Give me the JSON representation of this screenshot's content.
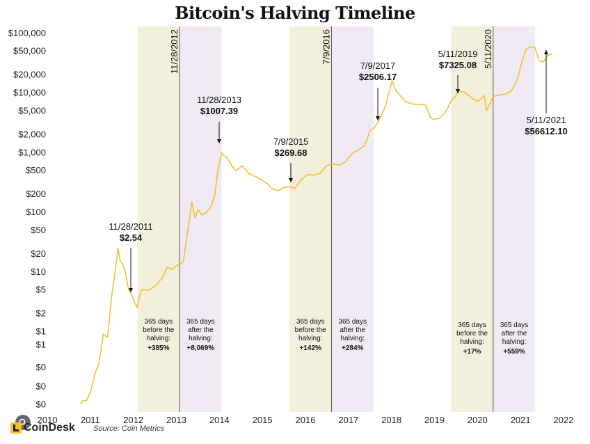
{
  "header": {
    "title": "Bitcoin's Halving Timeline"
  },
  "footer": {
    "brand": "CoinDesk",
    "source": "Source: Coin Metrics"
  },
  "colors": {
    "price_line": "#f2c12e",
    "before_band": "#f2efdc",
    "after_band": "#efeaf3",
    "vline": "#555555"
  },
  "icons": {
    "brand_logo": "coindesk-logo-icon",
    "overlay": "search-icon"
  },
  "chart_data": {
    "type": "line",
    "title": "Bitcoin's Halving Timeline",
    "xlabel": "",
    "ylabel": "",
    "scale": "log",
    "grid": false,
    "x_ticks": [
      "2010",
      "2011",
      "2012",
      "2013",
      "2014",
      "2015",
      "2016",
      "2017",
      "2018",
      "2019",
      "2020",
      "2021",
      "2022"
    ],
    "y_ticks": [
      {
        "value": 0.06,
        "label": "$0"
      },
      {
        "value": 0.12,
        "label": "$0"
      },
      {
        "value": 0.25,
        "label": "$0"
      },
      {
        "value": 0.6,
        "label": "$1"
      },
      {
        "value": 1,
        "label": "$1"
      },
      {
        "value": 2,
        "label": "$2"
      },
      {
        "value": 5,
        "label": "$5"
      },
      {
        "value": 10,
        "label": "$10"
      },
      {
        "value": 20,
        "label": "$20"
      },
      {
        "value": 50,
        "label": "$50"
      },
      {
        "value": 100,
        "label": "$100"
      },
      {
        "value": 200,
        "label": "$200"
      },
      {
        "value": 500,
        "label": "$500"
      },
      {
        "value": 1000,
        "label": "$1,000"
      },
      {
        "value": 2000,
        "label": "$2,000"
      },
      {
        "value": 5000,
        "label": "$5,000"
      },
      {
        "value": 10000,
        "label": "$10,000"
      },
      {
        "value": 20000,
        "label": "$20,000"
      },
      {
        "value": 50000,
        "label": "$50,000"
      },
      {
        "value": 100000,
        "label": "$100,000"
      }
    ],
    "series": [
      {
        "x": [
          2010.55,
          2010.62,
          2010.7,
          2010.8,
          2010.9,
          2011.0,
          2011.1,
          2011.2,
          2011.3,
          2011.38,
          2011.45,
          2011.5,
          2011.55,
          2011.62,
          2011.7,
          2011.78,
          2011.85,
          2011.9,
          2012.0,
          2012.1,
          2012.2,
          2012.35,
          2012.5,
          2012.62,
          2012.75,
          2012.85,
          2012.91,
          2013.0,
          2013.1,
          2013.2,
          2013.28,
          2013.35,
          2013.45,
          2013.55,
          2013.65,
          2013.75,
          2013.82,
          2013.91,
          2013.96,
          2014.05,
          2014.15,
          2014.25,
          2014.4,
          2014.55,
          2014.7,
          2014.85,
          2015.0,
          2015.1,
          2015.25,
          2015.4,
          2015.52,
          2015.65,
          2015.8,
          2015.95,
          2016.1,
          2016.25,
          2016.4,
          2016.52,
          2016.7,
          2016.85,
          2017.0,
          2017.15,
          2017.3,
          2017.45,
          2017.52,
          2017.65,
          2017.8,
          2017.96,
          2018.05,
          2018.15,
          2018.3,
          2018.45,
          2018.6,
          2018.75,
          2018.88,
          2018.95,
          2019.1,
          2019.25,
          2019.36,
          2019.45,
          2019.55,
          2019.7,
          2019.85,
          2020.0,
          2020.15,
          2020.2,
          2020.3,
          2020.36,
          2020.5,
          2020.65,
          2020.8,
          2020.95,
          2021.05,
          2021.15,
          2021.28,
          2021.36,
          2021.45,
          2021.55,
          2021.65,
          2021.75
        ],
        "y": [
          0.06,
          0.07,
          0.07,
          0.1,
          0.2,
          0.3,
          0.9,
          0.8,
          4,
          10,
          25,
          15,
          14,
          10,
          5,
          4,
          3,
          2.54,
          5,
          5,
          5,
          6,
          8,
          12,
          11,
          13,
          13,
          15,
          45,
          150,
          80,
          110,
          90,
          100,
          120,
          200,
          500,
          1007.39,
          900,
          800,
          600,
          500,
          600,
          450,
          400,
          350,
          300,
          250,
          230,
          260,
          269.68,
          250,
          350,
          430,
          420,
          450,
          600,
          650,
          620,
          700,
          950,
          1100,
          1300,
          2400,
          2506.17,
          3500,
          6000,
          16000,
          11000,
          9000,
          7000,
          6500,
          6400,
          6300,
          3800,
          3600,
          3800,
          5000,
          7325.08,
          8500,
          11000,
          10000,
          8200,
          7200,
          9000,
          5000,
          7000,
          8700,
          9200,
          9500,
          11000,
          18000,
          35000,
          55000,
          60000,
          56612.1,
          35000,
          33000,
          42000,
          46000
        ]
      }
    ],
    "halvings": [
      {
        "x": 2012.91,
        "label": "11/28/2012"
      },
      {
        "x": 2016.52,
        "label": "7/9/2016"
      },
      {
        "x": 2020.36,
        "label": "5/11/2020"
      }
    ],
    "bands": [
      {
        "x0": 2011.91,
        "x1": 2012.91,
        "kind": "before",
        "lines": [
          "365 days",
          "before the",
          "halving:"
        ],
        "value": "+385%"
      },
      {
        "x0": 2012.91,
        "x1": 2013.91,
        "kind": "after",
        "lines": [
          "365 days",
          "after the",
          "halving:"
        ],
        "value": "+8,069%"
      },
      {
        "x0": 2015.52,
        "x1": 2016.52,
        "kind": "before",
        "lines": [
          "365 days",
          "before the",
          "halving:"
        ],
        "value": "+142%"
      },
      {
        "x0": 2016.52,
        "x1": 2017.52,
        "kind": "after",
        "lines": [
          "365 days",
          "after the",
          "halving:"
        ],
        "value": "+284%"
      },
      {
        "x0": 2019.36,
        "x1": 2020.36,
        "kind": "before",
        "lines": [
          "365 days",
          "before the",
          "halving:"
        ],
        "value": "+17%"
      },
      {
        "x0": 2020.36,
        "x1": 2021.36,
        "kind": "after",
        "lines": [
          "365 days",
          "after the",
          "halving:"
        ],
        "value": "+559%"
      }
    ],
    "annotations": [
      {
        "date": "11/28/2011",
        "price": "$2.54",
        "x": 2011.91,
        "y": 2.54
      },
      {
        "date": "11/28/2013",
        "price": "$1007.39",
        "x": 2013.91,
        "y": 1007.39
      },
      {
        "date": "7/9/2015",
        "price": "$269.68",
        "x": 2015.52,
        "y": 269.68
      },
      {
        "date": "7/9/2017",
        "price": "$2506.17",
        "x": 2017.52,
        "y": 2506.17
      },
      {
        "date": "5/11/2019",
        "price": "$7325.08",
        "x": 2019.36,
        "y": 7325.08
      },
      {
        "date": "5/11/2021",
        "price": "$56612.10",
        "x": 2021.36,
        "y": 56612.1
      }
    ]
  }
}
